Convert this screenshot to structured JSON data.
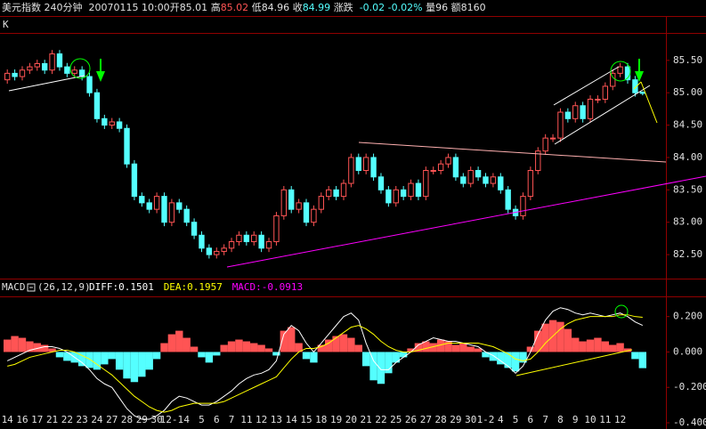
{
  "header": {
    "instrument": "美元指数",
    "period": "240分钟",
    "datetime": "20070115 10:00",
    "open_label": "开",
    "open": "85.01",
    "high_label": "高",
    "high": "85.02",
    "low_label": "低",
    "low": "84.96",
    "close_label": "收",
    "close": "84.99",
    "change_label": "涨跌",
    "change": "-0.02",
    "change_pct": "-0.02%",
    "volume_label": "量",
    "volume": "96",
    "amount_label": "额",
    "amount": "8160"
  },
  "chart_data": [
    {
      "type": "candlestick",
      "title": "K",
      "categories": [
        "14",
        null,
        "16",
        null,
        "17",
        null,
        "21",
        null,
        "22",
        null,
        "23",
        null,
        "24",
        null,
        "27",
        null,
        "28",
        null,
        "29",
        null,
        "30",
        null,
        "12-1",
        null,
        "4",
        null,
        "5",
        null,
        "6",
        null,
        "7",
        null,
        "11",
        null,
        "12",
        null,
        "13",
        null,
        "14",
        null,
        "15",
        null,
        "18",
        null,
        "19",
        null,
        "20",
        null,
        "21",
        null,
        "22",
        null,
        "25",
        null,
        "26",
        null,
        "27",
        null,
        "28",
        null,
        "29",
        null,
        "30",
        null,
        "1-2",
        null,
        "4",
        null,
        "5",
        null,
        "6",
        null,
        "7",
        null,
        "8",
        null,
        "9",
        null,
        "10",
        null,
        "11",
        null,
        "12",
        null,
        null,
        null
      ],
      "open": [
        85.2,
        85.3,
        85.25,
        85.35,
        85.4,
        85.45,
        85.35,
        85.6,
        85.4,
        85.3,
        85.35,
        85.25,
        85.0,
        84.6,
        84.5,
        84.55,
        84.45,
        83.9,
        83.4,
        83.3,
        83.2,
        83.4,
        83.0,
        83.3,
        83.2,
        83.0,
        82.8,
        82.6,
        82.5,
        82.55,
        82.6,
        82.7,
        82.8,
        82.7,
        82.8,
        82.6,
        82.7,
        83.1,
        83.5,
        83.2,
        83.3,
        83.0,
        83.2,
        83.4,
        83.5,
        83.4,
        83.6,
        84.0,
        83.8,
        84.0,
        83.7,
        83.5,
        83.3,
        83.5,
        83.4,
        83.6,
        83.4,
        83.8,
        83.8,
        83.9,
        84.0,
        83.7,
        83.6,
        83.8,
        83.7,
        83.6,
        83.7,
        83.5,
        83.2,
        83.1,
        83.4,
        83.8,
        84.1,
        84.3,
        84.3,
        84.7,
        84.6,
        84.8,
        84.6,
        84.9,
        84.9,
        85.1,
        85.3,
        85.4,
        85.2,
        85.01
      ],
      "high": [
        85.36,
        85.36,
        85.41,
        85.46,
        85.51,
        85.51,
        85.66,
        85.66,
        85.46,
        85.41,
        85.41,
        85.31,
        85.06,
        84.66,
        84.61,
        84.61,
        84.51,
        83.96,
        83.46,
        83.36,
        83.46,
        83.46,
        83.36,
        83.36,
        83.26,
        83.06,
        82.86,
        82.66,
        82.61,
        82.66,
        82.76,
        82.86,
        82.86,
        82.86,
        82.86,
        82.76,
        83.16,
        83.56,
        83.56,
        83.36,
        83.36,
        83.26,
        83.46,
        83.56,
        83.56,
        83.66,
        84.06,
        84.06,
        84.06,
        84.06,
        83.76,
        83.56,
        83.56,
        83.56,
        83.66,
        83.66,
        83.86,
        83.86,
        83.96,
        84.06,
        84.06,
        83.76,
        83.86,
        83.86,
        83.76,
        83.76,
        83.76,
        83.56,
        83.26,
        83.46,
        83.86,
        84.16,
        84.36,
        84.36,
        84.76,
        84.76,
        84.86,
        84.86,
        84.96,
        84.96,
        85.16,
        85.36,
        85.46,
        85.46,
        85.26,
        85.02
      ],
      "low": [
        85.14,
        85.19,
        85.19,
        85.29,
        85.34,
        85.29,
        85.29,
        85.34,
        85.24,
        85.24,
        85.19,
        84.94,
        84.54,
        84.44,
        84.44,
        84.39,
        83.84,
        83.34,
        83.24,
        83.14,
        83.14,
        82.94,
        82.94,
        83.14,
        82.94,
        82.74,
        82.54,
        82.44,
        82.44,
        82.49,
        82.54,
        82.64,
        82.64,
        82.64,
        82.54,
        82.54,
        82.64,
        83.04,
        83.14,
        83.14,
        82.94,
        82.94,
        83.14,
        83.34,
        83.34,
        83.34,
        83.54,
        83.74,
        83.74,
        83.64,
        83.44,
        83.24,
        83.24,
        83.34,
        83.34,
        83.34,
        83.34,
        83.74,
        83.74,
        83.84,
        83.64,
        83.54,
        83.54,
        83.64,
        83.54,
        83.54,
        83.44,
        83.14,
        83.04,
        83.04,
        83.34,
        83.74,
        84.04,
        84.24,
        84.24,
        84.54,
        84.54,
        84.54,
        84.54,
        84.84,
        84.84,
        85.04,
        85.24,
        85.14,
        84.94,
        84.96
      ],
      "close": [
        85.3,
        85.25,
        85.35,
        85.4,
        85.45,
        85.35,
        85.6,
        85.4,
        85.3,
        85.35,
        85.25,
        85.0,
        84.6,
        84.5,
        84.55,
        84.45,
        83.9,
        83.4,
        83.3,
        83.2,
        83.4,
        83.0,
        83.3,
        83.2,
        83.0,
        82.8,
        82.6,
        82.5,
        82.55,
        82.6,
        82.7,
        82.8,
        82.7,
        82.8,
        82.6,
        82.7,
        83.1,
        83.5,
        83.2,
        83.3,
        83.0,
        83.2,
        83.4,
        83.5,
        83.4,
        83.6,
        84.0,
        83.8,
        84.0,
        83.7,
        83.5,
        83.3,
        83.5,
        83.4,
        83.6,
        83.4,
        83.8,
        83.8,
        83.9,
        84.0,
        83.7,
        83.6,
        83.8,
        83.7,
        83.6,
        83.7,
        83.5,
        83.2,
        83.1,
        83.4,
        83.8,
        84.1,
        84.3,
        84.3,
        84.7,
        84.6,
        84.8,
        84.6,
        84.9,
        84.9,
        85.1,
        85.3,
        85.4,
        85.2,
        85.0,
        84.99
      ],
      "up_color": "#ff5454",
      "down_color": "#54ffff",
      "ylim": [
        82.13,
        85.91
      ],
      "yticks": [
        {
          "value": 82.5,
          "label": "82.50"
        },
        {
          "value": 83,
          "label": "83.00"
        },
        {
          "value": 83.5,
          "label": "83.50"
        },
        {
          "value": 84,
          "label": "84.00"
        },
        {
          "value": 84.5,
          "label": "84.50"
        },
        {
          "value": 85,
          "label": "85.00"
        },
        {
          "value": 85.5,
          "label": "85.50"
        }
      ]
    },
    {
      "type": "macd",
      "title": "MACD",
      "params": "(26,12,9)",
      "series": [
        {
          "label": "DIFF:0.1501",
          "color": "#ffffff",
          "values": [
            -0.05,
            -0.03,
            -0.01,
            0.01,
            0.02,
            0.03,
            0.03,
            0.02,
            0.0,
            -0.03,
            -0.06,
            -0.1,
            -0.15,
            -0.18,
            -0.2,
            -0.26,
            -0.32,
            -0.36,
            -0.38,
            -0.38,
            -0.36,
            -0.33,
            -0.28,
            -0.25,
            -0.26,
            -0.28,
            -0.3,
            -0.3,
            -0.28,
            -0.25,
            -0.22,
            -0.18,
            -0.15,
            -0.13,
            -0.12,
            -0.1,
            -0.05,
            0.1,
            0.15,
            0.12,
            0.05,
            0.0,
            0.05,
            0.1,
            0.15,
            0.2,
            0.22,
            0.18,
            0.05,
            -0.05,
            -0.1,
            -0.1,
            -0.06,
            -0.03,
            0.0,
            0.04,
            0.06,
            0.08,
            0.07,
            0.06,
            0.06,
            0.05,
            0.04,
            0.03,
            0.0,
            -0.02,
            -0.05,
            -0.08,
            -0.12,
            -0.08,
            0.0,
            0.1,
            0.18,
            0.23,
            0.25,
            0.24,
            0.22,
            0.21,
            0.22,
            0.21,
            0.2,
            0.21,
            0.22,
            0.2,
            0.17,
            0.1501
          ]
        },
        {
          "label": "DEA:0.1957",
          "color": "#ffff00",
          "values": [
            -0.08,
            -0.07,
            -0.05,
            -0.03,
            -0.02,
            -0.01,
            0.0,
            0.01,
            0.01,
            0.0,
            -0.02,
            -0.04,
            -0.07,
            -0.1,
            -0.13,
            -0.17,
            -0.21,
            -0.25,
            -0.28,
            -0.31,
            -0.33,
            -0.34,
            -0.33,
            -0.31,
            -0.3,
            -0.29,
            -0.29,
            -0.29,
            -0.29,
            -0.28,
            -0.26,
            -0.24,
            -0.22,
            -0.2,
            -0.18,
            -0.16,
            -0.14,
            -0.09,
            -0.04,
            0.0,
            0.02,
            0.02,
            0.03,
            0.05,
            0.08,
            0.11,
            0.14,
            0.15,
            0.13,
            0.1,
            0.06,
            0.03,
            0.01,
            0.0,
            0.0,
            0.01,
            0.02,
            0.03,
            0.04,
            0.05,
            0.05,
            0.05,
            0.05,
            0.05,
            0.04,
            0.03,
            0.01,
            -0.01,
            -0.04,
            -0.05,
            -0.04,
            0.0,
            0.05,
            0.09,
            0.13,
            0.16,
            0.18,
            0.19,
            0.2,
            0.2,
            0.2,
            0.2,
            0.21,
            0.21,
            0.2,
            0.1957
          ]
        },
        {
          "label": "MACD:-0.0913",
          "color": "#ff00ff",
          "up_color": "#ff5454",
          "down_color": "#54ffff",
          "values": [
            0.07,
            0.09,
            0.08,
            0.06,
            0.05,
            0.04,
            0.02,
            -0.03,
            -0.05,
            -0.06,
            -0.08,
            -0.09,
            -0.1,
            -0.07,
            -0.04,
            -0.1,
            -0.15,
            -0.17,
            -0.14,
            -0.1,
            -0.04,
            0.05,
            0.1,
            0.12,
            0.08,
            0.03,
            -0.03,
            -0.06,
            -0.02,
            0.04,
            0.06,
            0.07,
            0.06,
            0.05,
            0.04,
            0.02,
            -0.02,
            0.12,
            0.14,
            0.05,
            -0.04,
            -0.06,
            0.04,
            0.07,
            0.09,
            0.1,
            0.08,
            0.04,
            -0.08,
            -0.16,
            -0.18,
            -0.12,
            -0.06,
            -0.03,
            0.02,
            0.05,
            0.06,
            0.05,
            0.07,
            0.06,
            0.04,
            0.05,
            0.03,
            0.02,
            -0.03,
            -0.05,
            -0.07,
            -0.09,
            -0.11,
            -0.06,
            0.03,
            0.12,
            0.16,
            0.18,
            0.17,
            0.13,
            0.08,
            0.06,
            0.07,
            0.08,
            0.06,
            0.04,
            0.05,
            0.02,
            -0.04,
            -0.0913
          ]
        }
      ],
      "ylim": [
        -0.415,
        0.309
      ],
      "yticks": [
        {
          "value": -0.4,
          "label": "-0.400"
        },
        {
          "value": -0.2,
          "label": "-0.200"
        },
        {
          "value": 0,
          "label": "0.000"
        },
        {
          "value": 0.2,
          "label": "0.200"
        }
      ]
    }
  ]
}
